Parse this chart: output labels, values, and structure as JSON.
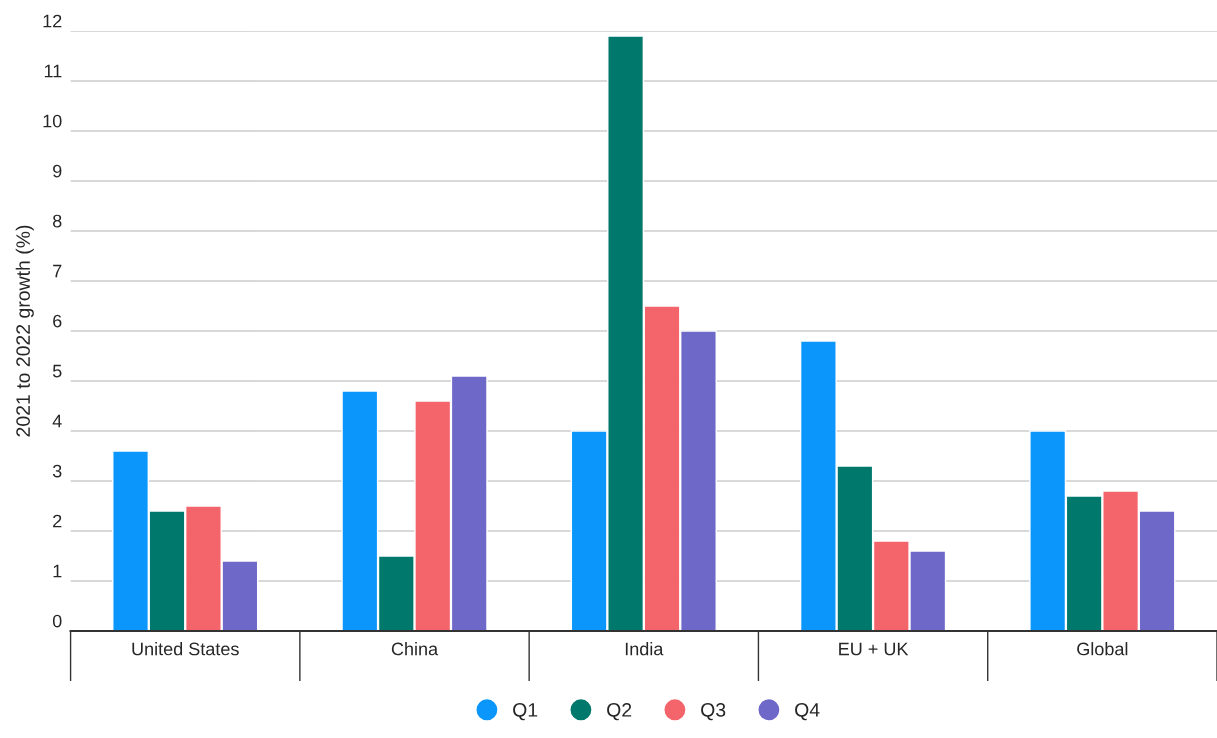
{
  "chart_data": {
    "type": "bar",
    "ylabel": "2021 to 2022 growth (%)",
    "categories": [
      "United States",
      "China",
      "India",
      "EU + UK",
      "Global"
    ],
    "series": [
      {
        "name": "Q1",
        "color": "#0a96fb",
        "values": [
          3.6,
          4.8,
          4.0,
          5.8,
          4.0
        ]
      },
      {
        "name": "Q2",
        "color": "#00786c",
        "values": [
          2.4,
          1.5,
          11.9,
          3.3,
          2.7
        ]
      },
      {
        "name": "Q3",
        "color": "#f3646b",
        "values": [
          2.5,
          4.6,
          6.5,
          1.8,
          2.8
        ]
      },
      {
        "name": "Q4",
        "color": "#6e68c9",
        "values": [
          1.4,
          5.1,
          6.0,
          1.6,
          2.4
        ]
      }
    ],
    "ylim": [
      0,
      12
    ],
    "yticks": [
      0,
      1,
      2,
      3,
      4,
      5,
      6,
      7,
      8,
      9,
      10,
      11,
      12
    ],
    "grid": "y",
    "legend": "bottom",
    "marker": "circle"
  }
}
